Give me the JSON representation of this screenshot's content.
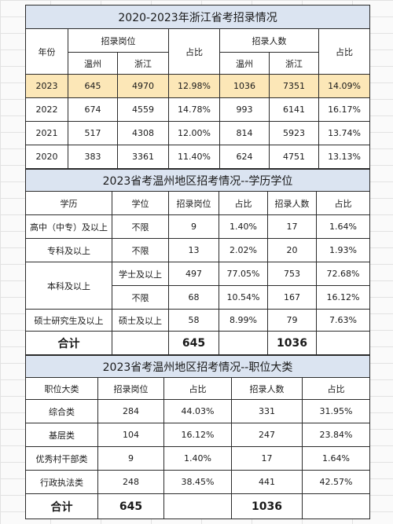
{
  "table1": {
    "title": "2020-2023年浙江省考招录情况",
    "h_year": "年份",
    "h_positions": "招录岗位",
    "h_ratio1": "占比",
    "h_people": "招录人数",
    "h_ratio2": "占比",
    "h_wz1": "温州",
    "h_zj1": "浙江",
    "h_wz2": "温州",
    "h_zj2": "浙江",
    "rows": [
      {
        "year": "2023",
        "pos_wz": "645",
        "pos_zj": "4970",
        "pos_ratio": "12.98%",
        "ppl_wz": "1036",
        "ppl_zj": "7351",
        "ppl_ratio": "14.09%"
      },
      {
        "year": "2022",
        "pos_wz": "674",
        "pos_zj": "4559",
        "pos_ratio": "14.78%",
        "ppl_wz": "993",
        "ppl_zj": "6141",
        "ppl_ratio": "16.17%"
      },
      {
        "year": "2021",
        "pos_wz": "517",
        "pos_zj": "4308",
        "pos_ratio": "12.00%",
        "ppl_wz": "814",
        "ppl_zj": "5923",
        "ppl_ratio": "13.74%"
      },
      {
        "year": "2020",
        "pos_wz": "383",
        "pos_zj": "3361",
        "pos_ratio": "11.40%",
        "ppl_wz": "624",
        "ppl_zj": "4751",
        "ppl_ratio": "13.13%"
      }
    ]
  },
  "table2": {
    "title": "2023省考温州地区招考情况--学历学位",
    "headers": [
      "学历",
      "学位",
      "招录岗位",
      "占比",
      "招录人数",
      "占比"
    ],
    "rows": [
      {
        "edu": "高中（中专）及以上",
        "degree": "不限",
        "pos": "9",
        "pos_ratio": "1.40%",
        "ppl": "17",
        "ppl_ratio": "1.64%"
      },
      {
        "edu": "专科及以上",
        "degree": "不限",
        "pos": "13",
        "pos_ratio": "2.02%",
        "ppl": "20",
        "ppl_ratio": "1.93%"
      },
      {
        "edu": "本科及以上",
        "degree": "学士及以上",
        "pos": "497",
        "pos_ratio": "77.05%",
        "ppl": "753",
        "ppl_ratio": "72.68%"
      },
      {
        "edu": "",
        "degree": "不限",
        "pos": "68",
        "pos_ratio": "10.54%",
        "ppl": "167",
        "ppl_ratio": "16.12%"
      },
      {
        "edu": "硕士研究生及以上",
        "degree": "硕士及以上",
        "pos": "58",
        "pos_ratio": "8.99%",
        "ppl": "79",
        "ppl_ratio": "7.63%"
      }
    ],
    "total": {
      "label": "合计",
      "pos": "645",
      "ppl": "1036"
    }
  },
  "table3": {
    "title": "2023省考温州地区招考情况--职位大类",
    "headers": [
      "职位大类",
      "招录岗位",
      "占比",
      "招录人数",
      "占比"
    ],
    "rows": [
      {
        "cat": "综合类",
        "pos": "284",
        "pos_ratio": "44.03%",
        "ppl": "331",
        "ppl_ratio": "31.95%"
      },
      {
        "cat": "基层类",
        "pos": "104",
        "pos_ratio": "16.12%",
        "ppl": "247",
        "ppl_ratio": "23.84%"
      },
      {
        "cat": "优秀村干部类",
        "pos": "9",
        "pos_ratio": "1.40%",
        "ppl": "17",
        "ppl_ratio": "1.64%"
      },
      {
        "cat": "行政执法类",
        "pos": "248",
        "pos_ratio": "38.45%",
        "ppl": "441",
        "ppl_ratio": "42.57%"
      }
    ],
    "total": {
      "label": "合计",
      "pos": "645",
      "ppl": "1036"
    }
  }
}
